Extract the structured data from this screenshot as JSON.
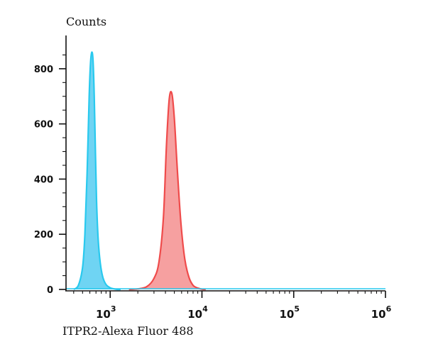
{
  "chart_data": {
    "type": "area",
    "title": "Counts",
    "xlabel": "ITPR2-Alexa Fluor 488",
    "ylabel": "",
    "xscale": "log",
    "xlim": [
      330,
      1000000
    ],
    "ylim": [
      0,
      900
    ],
    "x_ticks": [
      {
        "value": 1000,
        "base": "10",
        "exp": "3"
      },
      {
        "value": 10000,
        "base": "10",
        "exp": "4"
      },
      {
        "value": 100000,
        "base": "10",
        "exp": "5"
      },
      {
        "value": 1000000,
        "base": "10",
        "exp": "6"
      }
    ],
    "y_ticks": [
      0,
      200,
      400,
      600,
      800
    ],
    "series": [
      {
        "color_line": "#29c9ee",
        "color_fill": "#6fd4f3",
        "x": [
          400,
          450,
          500,
          530,
          560,
          590,
          610,
          630,
          650,
          670,
          690,
          710,
          740,
          780,
          830,
          900,
          1000,
          1100,
          1200,
          1300
        ],
        "y": [
          0,
          15,
          80,
          200,
          420,
          700,
          820,
          860,
          830,
          700,
          500,
          320,
          180,
          95,
          45,
          18,
          6,
          2,
          0,
          0
        ]
      },
      {
        "color_line": "#ef4b4b",
        "color_fill": "#f6a0a0",
        "x": [
          1600,
          2000,
          2500,
          3000,
          3400,
          3800,
          4100,
          4400,
          4700,
          5000,
          5400,
          5900,
          6500,
          7200,
          8000,
          9000,
          10000,
          11000
        ],
        "y": [
          0,
          2,
          10,
          40,
          100,
          260,
          520,
          690,
          710,
          620,
          430,
          240,
          110,
          45,
          15,
          5,
          1,
          0
        ]
      }
    ]
  }
}
